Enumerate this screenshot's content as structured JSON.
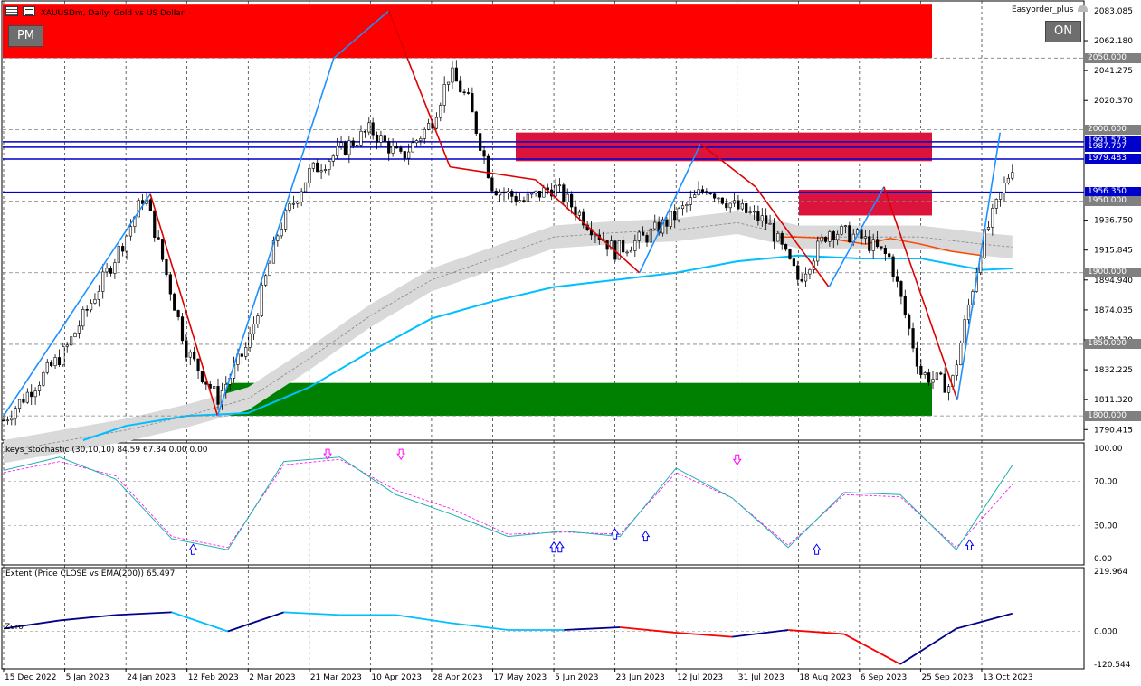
{
  "window": {
    "title": "XAUUSDm, Daily:  Gold vs US Dollar",
    "ea_name": "Easyorder_plus",
    "pm_button": "PM",
    "on_button": "ON"
  },
  "price_axis": {
    "ticks": [
      "2083.085",
      "2062.180",
      "2041.275",
      "2020.370",
      "1936.750",
      "1915.845",
      "1894.940",
      "1874.035",
      "1853.130",
      "1832.225",
      "1811.320",
      "1790.415"
    ],
    "boxes": [
      {
        "label": "2050.000",
        "color": "#808080"
      },
      {
        "label": "2000.000",
        "color": "#808080"
      },
      {
        "label": "1991.573",
        "color": "#0000cc"
      },
      {
        "label": "1987.707",
        "color": "#0000cc"
      },
      {
        "label": "1979.483",
        "color": "#0000cc"
      },
      {
        "label": "1956.350",
        "color": "#0000cc"
      },
      {
        "label": "1950.000",
        "color": "#808080"
      },
      {
        "label": "1900.000",
        "color": "#808080"
      },
      {
        "label": "1850.000",
        "color": "#808080"
      },
      {
        "label": "1800.000",
        "color": "#808080"
      }
    ]
  },
  "stoch": {
    "label": "keys_stochastic (30,10,10) 84.59 67.34 0.00 0.00",
    "ticks": [
      "100.00",
      "70.00",
      "30.00",
      "0.00"
    ]
  },
  "extent": {
    "label": "Extent (Price CLOSE vs EMA(200)) 65.497",
    "zero_label": "Zero",
    "ticks": [
      "219.964",
      "0.000",
      "-120.544"
    ]
  },
  "time_axis": [
    "15 Dec 2022",
    "5 Jan 2023",
    "24 Jan 2023",
    "12 Feb 2023",
    "2 Mar 2023",
    "21 Mar 2023",
    "10 Apr 2023",
    "28 Apr 2023",
    "17 May 2023",
    "5 Jun 2023",
    "23 Jun 2023",
    "12 Jul 2023",
    "31 Jul 2023",
    "18 Aug 2023",
    "6 Sep 2023",
    "25 Sep 2023",
    "13 Oct 2023"
  ],
  "colors": {
    "supply_zone": "#ff0000",
    "demand_zone": "#008000",
    "crimson_zone": "#dc143c",
    "zigzag_up": "#1e90ff",
    "zigzag_down": "#dd0000",
    "hline": "#0000cc",
    "ema": "#00bfff"
  },
  "chart_data": {
    "type": "candlestick",
    "symbol": "XAUUSDm",
    "timeframe": "Daily",
    "ylim": [
      1783,
      2090
    ],
    "x_dates": [
      "15 Dec 2022",
      "5 Jan 2023",
      "24 Jan 2023",
      "12 Feb 2023",
      "2 Mar 2023",
      "21 Mar 2023",
      "10 Apr 2023",
      "28 Apr 2023",
      "17 May 2023",
      "5 Jun 2023",
      "23 Jun 2023",
      "12 Jul 2023",
      "31 Jul 2023",
      "18 Aug 2023",
      "6 Sep 2023",
      "25 Sep 2023",
      "13 Oct 2023"
    ],
    "close_path": [
      [
        0,
        1797
      ],
      [
        1,
        1845
      ],
      [
        2,
        1925
      ],
      [
        2.3,
        1955
      ],
      [
        2.5,
        1925
      ],
      [
        3,
        1845
      ],
      [
        3.5,
        1812
      ],
      [
        4,
        1850
      ],
      [
        4.5,
        1930
      ],
      [
        5,
        1970
      ],
      [
        6,
        2000
      ],
      [
        6.5,
        1980
      ],
      [
        7,
        2005
      ],
      [
        7.3,
        2040
      ],
      [
        7.6,
        2020
      ],
      [
        8,
        1960
      ],
      [
        8.5,
        1950
      ],
      [
        9,
        1960
      ],
      [
        10,
        1915
      ],
      [
        10.5,
        1925
      ],
      [
        11,
        1940
      ],
      [
        11.5,
        1960
      ],
      [
        12,
        1945
      ],
      [
        12.5,
        1935
      ],
      [
        13,
        1895
      ],
      [
        13.5,
        1930
      ],
      [
        14,
        1925
      ],
      [
        14.5,
        1910
      ],
      [
        15,
        1830
      ],
      [
        15.5,
        1820
      ],
      [
        16,
        1920
      ],
      [
        16.5,
        1975
      ]
    ],
    "zigzag": [
      [
        0,
        1800
      ],
      [
        2.4,
        1955
      ],
      [
        3.5,
        1800
      ],
      [
        5.4,
        2050
      ],
      [
        6.3,
        2083
      ],
      [
        7.3,
        1974
      ],
      [
        8.7,
        1965
      ],
      [
        10.4,
        1900
      ],
      [
        11.4,
        1990
      ],
      [
        12.3,
        1960
      ],
      [
        13.5,
        1890
      ],
      [
        14.4,
        1960
      ],
      [
        15.6,
        1811
      ],
      [
        16.3,
        1998
      ]
    ],
    "zones": [
      {
        "name": "supply",
        "from": 2050,
        "to": 2088
      },
      {
        "name": "demand",
        "from": 1800,
        "to": 1823
      },
      {
        "name": "crimson-1",
        "from": 1978,
        "to": 1998
      },
      {
        "name": "crimson-2",
        "from": 1940,
        "to": 1958
      }
    ],
    "hlines": [
      2050,
      2000,
      1991.573,
      1987.707,
      1979.483,
      1956.35,
      1950,
      1900,
      1850,
      1800
    ],
    "stochastic": {
      "main": [
        80,
        92,
        72,
        18,
        8,
        88,
        92,
        58,
        40,
        20,
        25,
        20,
        82,
        55,
        10,
        60,
        58,
        8,
        84.59
      ],
      "signal": [
        78,
        88,
        75,
        20,
        10,
        85,
        90,
        62,
        45,
        22,
        24,
        22,
        78,
        55,
        12,
        58,
        56,
        10,
        67.34
      ]
    },
    "extent": {
      "values": [
        10,
        40,
        60,
        70,
        0,
        70,
        60,
        60,
        30,
        5,
        5,
        15,
        -5,
        -20,
        5,
        -10,
        -120,
        10,
        65.497
      ],
      "ylim": [
        -120.544,
        219.964
      ]
    }
  }
}
